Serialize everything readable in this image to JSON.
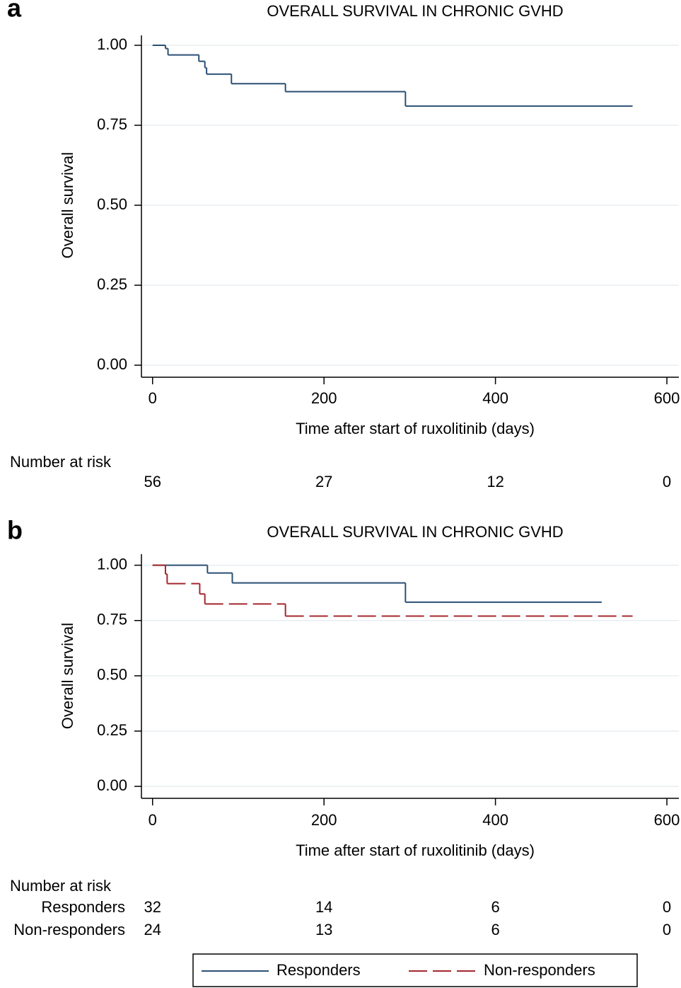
{
  "chart_data": [
    {
      "type": "step",
      "panel_label": "a",
      "title": "OVERALL SURVIVAL IN CHRONIC GVHD",
      "x_label": "Time after start of ruxolitinib (days)",
      "y_label": "Overall survival",
      "series": [
        {
          "color": "#2b4f74",
          "dash": false,
          "x": [
            0,
            15,
            18,
            54,
            61,
            63,
            92,
            155,
            295,
            560
          ],
          "values": [
            1.0,
            0.99,
            0.97,
            0.95,
            0.93,
            0.91,
            0.88,
            0.855,
            0.81,
            0.81
          ]
        }
      ],
      "xlim": [
        -13,
        614
      ],
      "xticks": [
        0,
        200,
        400,
        600
      ],
      "ylim": [
        -0.0376,
        1.031
      ],
      "yticks": [
        {
          "value": 0,
          "label": "0.00"
        },
        {
          "value": 0.25,
          "label": "0.25"
        },
        {
          "value": 0.5,
          "label": "0.50"
        },
        {
          "value": 0.75,
          "label": "0.75"
        },
        {
          "value": 1,
          "label": "1.00"
        }
      ],
      "grid": true,
      "risk_table": {
        "title": "Number at risk",
        "rows": [
          {
            "values": [
              56,
              27,
              12,
              0
            ]
          }
        ]
      }
    },
    {
      "type": "step",
      "panel_label": "b",
      "title": "OVERALL SURVIVAL IN CHRONIC GVHD",
      "x_label": "Time after start of ruxolitinib (days)",
      "y_label": "Overall survival",
      "series": [
        {
          "name": "Responders",
          "color": "#2b4f74",
          "dash": false,
          "x": [
            0,
            64,
            93,
            295,
            524
          ],
          "values": [
            1.0,
            0.965,
            0.92,
            0.833,
            0.833
          ]
        },
        {
          "name": "Non-responders",
          "color": "#a3282e",
          "dash": true,
          "x": [
            0,
            15,
            17,
            55,
            61,
            155,
            560
          ],
          "values": [
            1.0,
            0.96,
            0.917,
            0.87,
            0.825,
            0.77,
            0.77
          ]
        }
      ],
      "xlim": [
        -13,
        614
      ],
      "xticks": [
        0,
        200,
        400,
        600
      ],
      "ylim": [
        -0.054,
        1.05
      ],
      "yticks": [
        {
          "value": 0,
          "label": "0.00"
        },
        {
          "value": 0.25,
          "label": "0.25"
        },
        {
          "value": 0.5,
          "label": "0.50"
        },
        {
          "value": 0.75,
          "label": "0.75"
        },
        {
          "value": 1,
          "label": "1.00"
        }
      ],
      "grid": true,
      "risk_table": {
        "title": "Number at risk",
        "rows": [
          {
            "name": "Responders",
            "values": [
              32,
              14,
              6,
              0
            ]
          },
          {
            "name": "Non-responders",
            "values": [
              24,
              13,
              6,
              0
            ]
          }
        ]
      }
    }
  ]
}
